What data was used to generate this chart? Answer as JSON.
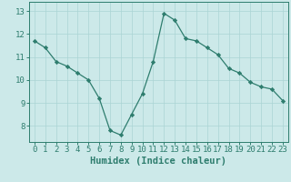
{
  "x": [
    0,
    1,
    2,
    3,
    4,
    5,
    6,
    7,
    8,
    9,
    10,
    11,
    12,
    13,
    14,
    15,
    16,
    17,
    18,
    19,
    20,
    21,
    22,
    23
  ],
  "y": [
    11.7,
    11.4,
    10.8,
    10.6,
    10.3,
    10.0,
    9.2,
    7.8,
    7.6,
    8.5,
    9.4,
    10.8,
    12.9,
    12.6,
    11.8,
    11.7,
    11.4,
    11.1,
    10.5,
    10.3,
    9.9,
    9.7,
    9.6,
    9.1
  ],
  "xlabel": "Humidex (Indice chaleur)",
  "xlim": [
    -0.5,
    23.5
  ],
  "ylim": [
    7.3,
    13.4
  ],
  "yticks": [
    8,
    9,
    10,
    11,
    12,
    13
  ],
  "xticks": [
    0,
    1,
    2,
    3,
    4,
    5,
    6,
    7,
    8,
    9,
    10,
    11,
    12,
    13,
    14,
    15,
    16,
    17,
    18,
    19,
    20,
    21,
    22,
    23
  ],
  "line_color": "#2e7d6e",
  "marker": "D",
  "marker_size": 2.2,
  "bg_color": "#cce9e9",
  "grid_color": "#aad4d4",
  "axis_color": "#2e7d6e",
  "label_color": "#2e7d6e",
  "tick_color": "#2e7d6e",
  "xlabel_fontsize": 7.5,
  "tick_fontsize": 6.5
}
